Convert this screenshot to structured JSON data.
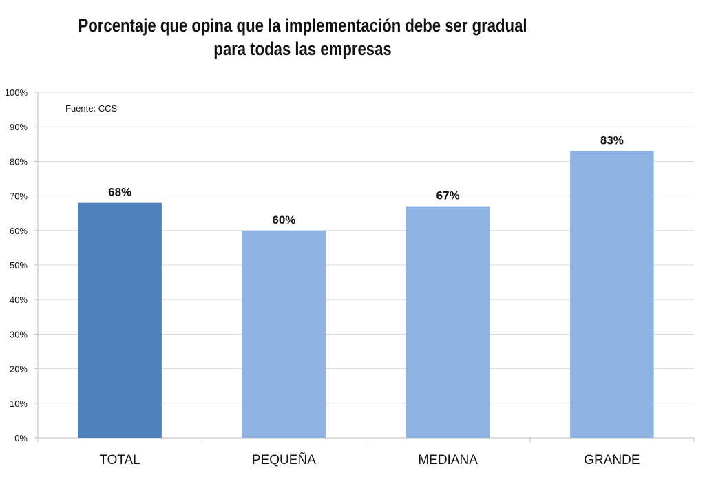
{
  "chart_data": {
    "type": "bar",
    "title_lines": [
      "Porcentaje que opina que la implementación debe ser gradual",
      "para todas las empresas"
    ],
    "note": "Fuente: CCS",
    "categories": [
      "TOTAL",
      "PEQUEÑA",
      "MEDIANA",
      "GRANDE"
    ],
    "values": [
      68,
      60,
      67,
      83
    ],
    "data_labels": [
      "68%",
      "60%",
      "67%",
      "83%"
    ],
    "bar_colors": [
      "#4f81bd",
      "#8db3e2",
      "#8db3e2",
      "#8db3e2"
    ],
    "ylim": [
      0,
      100
    ],
    "yticks": [
      0,
      10,
      20,
      30,
      40,
      50,
      60,
      70,
      80,
      90,
      100
    ],
    "ytick_labels": [
      "0%",
      "10%",
      "20%",
      "30%",
      "40%",
      "50%",
      "60%",
      "70%",
      "80%",
      "90%",
      "100%"
    ],
    "xlabel": "",
    "ylabel": "",
    "grid": true,
    "legend": "none"
  }
}
